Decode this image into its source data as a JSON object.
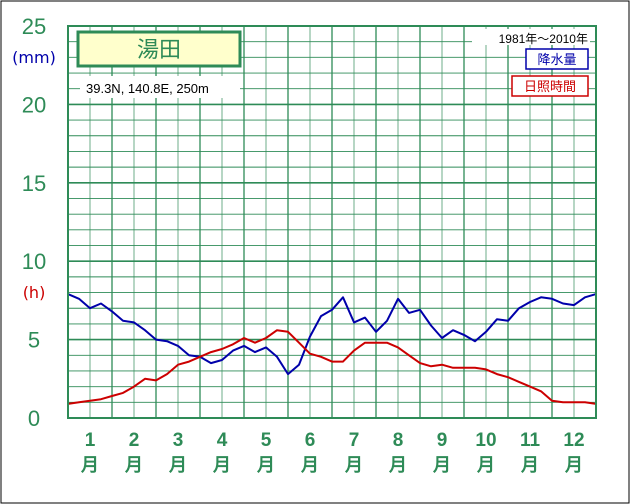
{
  "station": {
    "name": "湯田",
    "info": "39.3N,  140.8E,  250m",
    "period": "1981年〜2010年"
  },
  "legend": {
    "precip_label": "降水量",
    "sun_label": "日照時間"
  },
  "units": {
    "precip": "(mm)",
    "sun": "(h)"
  },
  "colors": {
    "frame": "#2e8b57",
    "grid": "#2e8b57",
    "title_bg": "#ffffcc",
    "precip": "#0000aa",
    "sun": "#cc0000",
    "axis_text": "#2e8b57"
  },
  "chart_data": {
    "type": "line",
    "ylim": [
      0,
      25
    ],
    "y_ticks": [
      "0",
      "5",
      "10",
      "15",
      "20",
      "25"
    ],
    "months": [
      {
        "num": "1",
        "unit": "月"
      },
      {
        "num": "2",
        "unit": "月"
      },
      {
        "num": "3",
        "unit": "月"
      },
      {
        "num": "4",
        "unit": "月"
      },
      {
        "num": "5",
        "unit": "月"
      },
      {
        "num": "6",
        "unit": "月"
      },
      {
        "num": "7",
        "unit": "月"
      },
      {
        "num": "8",
        "unit": "月"
      },
      {
        "num": "9",
        "unit": "月"
      },
      {
        "num": "10",
        "unit": "月"
      },
      {
        "num": "11",
        "unit": "月"
      },
      {
        "num": "12",
        "unit": "月"
      }
    ],
    "x_range": [
      0.5,
      12.5
    ],
    "series": [
      {
        "name": "降水量",
        "color": "#0000aa",
        "x": [
          0.5,
          0.75,
          1.0,
          1.25,
          1.5,
          1.75,
          2.0,
          2.25,
          2.5,
          2.75,
          3.0,
          3.25,
          3.5,
          3.75,
          4.0,
          4.25,
          4.5,
          4.75,
          5.0,
          5.25,
          5.5,
          5.75,
          6.0,
          6.25,
          6.5,
          6.75,
          7.0,
          7.25,
          7.5,
          7.75,
          8.0,
          8.25,
          8.5,
          8.75,
          9.0,
          9.25,
          9.5,
          9.75,
          10.0,
          10.25,
          10.5,
          10.75,
          11.0,
          11.25,
          11.5,
          11.75,
          12.0,
          12.25,
          12.5
        ],
        "values": [
          7.9,
          7.6,
          7.0,
          7.3,
          6.8,
          6.2,
          6.1,
          5.6,
          5.0,
          4.9,
          4.6,
          4.0,
          3.9,
          3.5,
          3.7,
          4.3,
          4.6,
          4.2,
          4.5,
          3.9,
          2.8,
          3.4,
          5.2,
          6.5,
          6.9,
          7.7,
          6.1,
          6.4,
          5.5,
          6.2,
          7.6,
          6.7,
          6.9,
          5.9,
          5.1,
          5.6,
          5.3,
          4.9,
          5.5,
          6.3,
          6.2,
          7.0,
          7.4,
          7.7,
          7.6,
          7.3,
          7.2,
          7.7,
          7.9
        ]
      },
      {
        "name": "日照時間",
        "color": "#cc0000",
        "x": [
          0.5,
          0.75,
          1.0,
          1.25,
          1.5,
          1.75,
          2.0,
          2.25,
          2.5,
          2.75,
          3.0,
          3.25,
          3.5,
          3.75,
          4.0,
          4.25,
          4.5,
          4.75,
          5.0,
          5.25,
          5.5,
          5.75,
          6.0,
          6.25,
          6.5,
          6.75,
          7.0,
          7.25,
          7.5,
          7.75,
          8.0,
          8.25,
          8.5,
          8.75,
          9.0,
          9.25,
          9.5,
          9.75,
          10.0,
          10.25,
          10.5,
          10.75,
          11.0,
          11.25,
          11.5,
          11.75,
          12.0,
          12.25,
          12.5
        ],
        "values": [
          0.9,
          1.0,
          1.1,
          1.2,
          1.4,
          1.6,
          2.0,
          2.5,
          2.4,
          2.8,
          3.4,
          3.6,
          3.9,
          4.2,
          4.4,
          4.7,
          5.1,
          4.8,
          5.1,
          5.6,
          5.5,
          4.8,
          4.1,
          3.9,
          3.6,
          3.6,
          4.3,
          4.8,
          4.8,
          4.8,
          4.5,
          4.0,
          3.5,
          3.3,
          3.4,
          3.2,
          3.2,
          3.2,
          3.1,
          2.8,
          2.6,
          2.3,
          2.0,
          1.7,
          1.1,
          1.0,
          1.0,
          1.0,
          0.9
        ]
      }
    ]
  }
}
